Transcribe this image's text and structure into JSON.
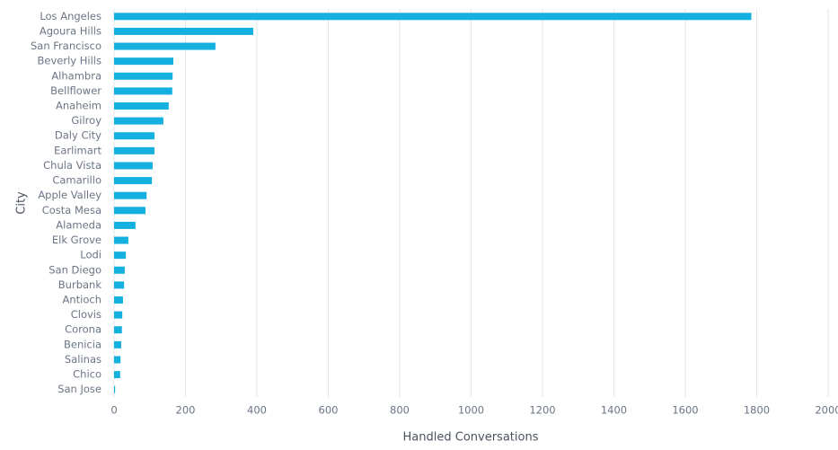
{
  "chart_data": {
    "type": "hbar",
    "x_label": "Handled Conversations",
    "y_label": "City",
    "categories": [
      "Los Angeles",
      "Agoura Hills",
      "San Francisco",
      "Beverly Hills",
      "Alhambra",
      "Bellflower",
      "Anaheim",
      "Gilroy",
      "Daly City",
      "Earlimart",
      "Chula Vista",
      "Camarillo",
      "Apple Valley",
      "Costa Mesa",
      "Alameda",
      "Elk Grove",
      "Lodi",
      "San Diego",
      "Burbank",
      "Antioch",
      "Clovis",
      "Corona",
      "Benicia",
      "Salinas",
      "Chico",
      "San Jose"
    ],
    "values": [
      1785,
      390,
      284,
      166,
      164,
      163,
      153,
      138,
      113,
      113,
      108,
      106,
      91,
      88,
      60,
      40,
      33,
      30,
      28,
      25,
      23,
      22,
      20,
      18,
      17,
      3
    ],
    "color": "#14b0e0",
    "xlim": [
      0,
      2000
    ],
    "xticks": [
      0,
      200,
      400,
      600,
      800,
      1000,
      1200,
      1400,
      1600,
      1800,
      2000
    ],
    "grid": true
  }
}
